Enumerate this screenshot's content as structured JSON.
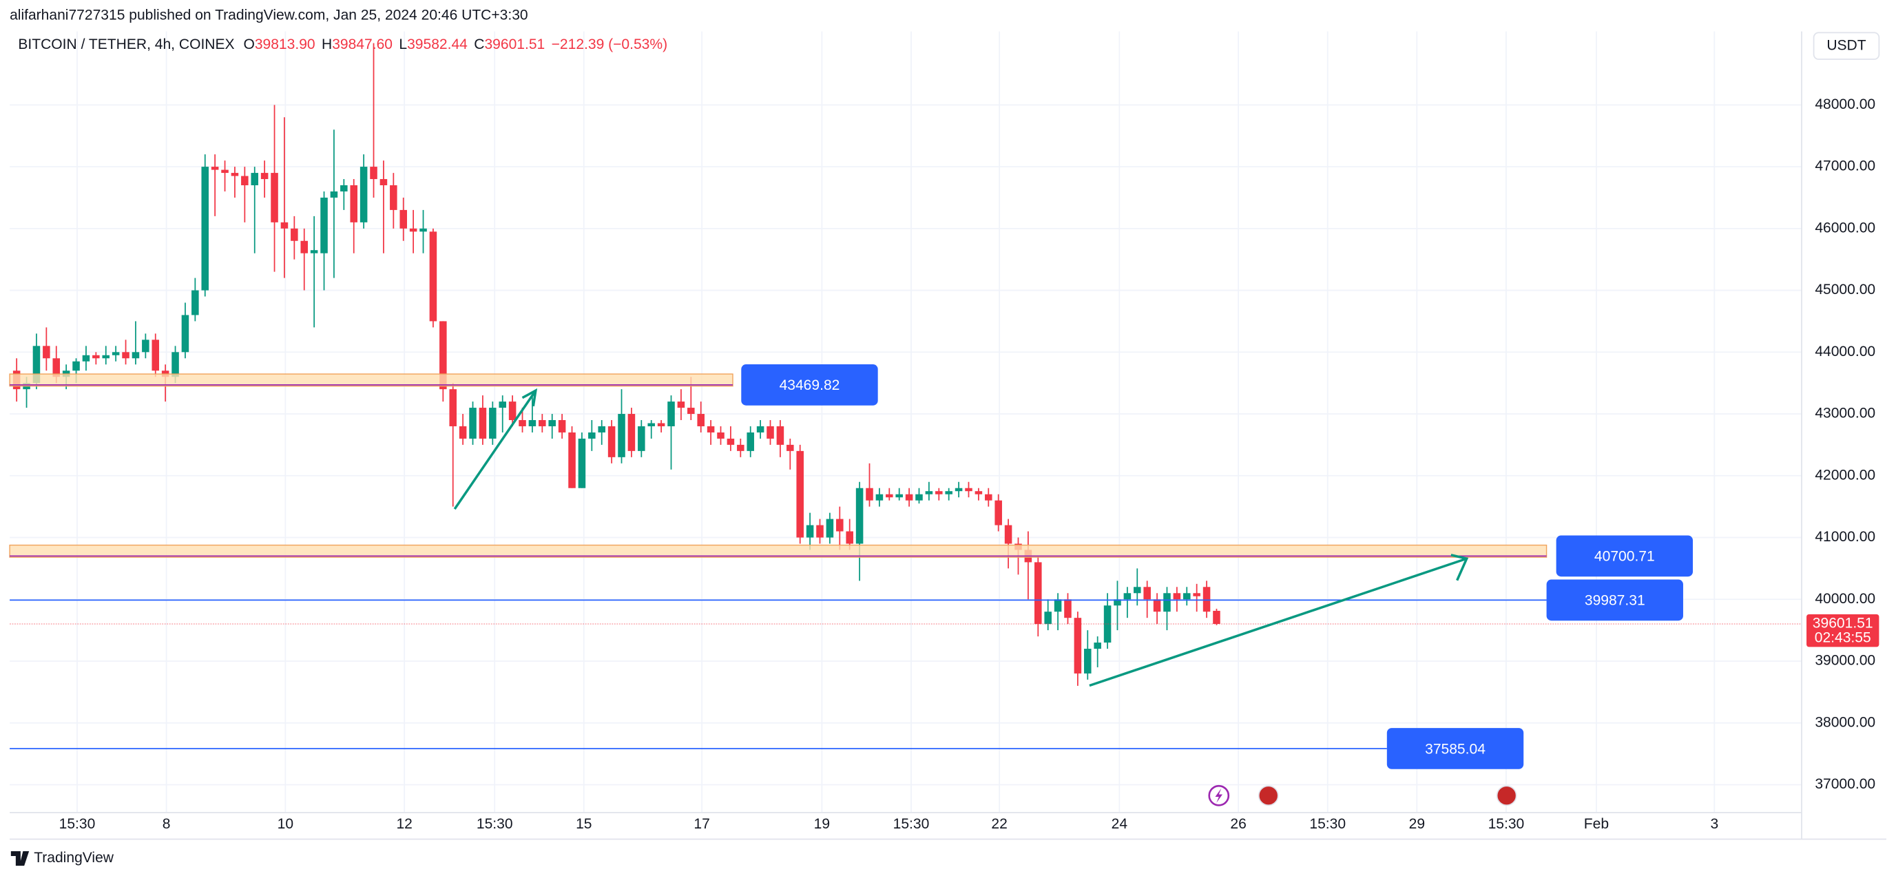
{
  "header": {
    "publisher": "alifarhani7727315 published on TradingView.com, Jan 25, 2024 20:46 UTC+3:30",
    "symbol": "BITCOIN / TETHER, 4h, COINEX",
    "ohlc": [
      {
        "key": "O",
        "value": "39813.90"
      },
      {
        "key": "H",
        "value": "39847.60"
      },
      {
        "key": "L",
        "value": "39582.44"
      },
      {
        "key": "C",
        "value": "39601.51"
      }
    ],
    "change": "−212.39 (−0.53%)",
    "currency": "USDT"
  },
  "chart_data": {
    "type": "candlestick",
    "up_color": "#089981",
    "down_color": "#f23645",
    "grid": true,
    "open": [
      43700,
      43400,
      43500,
      44100,
      43900,
      43600,
      43700,
      43850,
      43950,
      43900,
      43950,
      44000,
      43900,
      44000,
      44200,
      43700,
      43600,
      44000,
      44600,
      45000,
      47000,
      46950,
      46900,
      46850,
      46700,
      46900,
      46900,
      46100,
      46000,
      45800,
      45600,
      45600,
      46500,
      46600,
      46700,
      46100,
      47000,
      46800,
      46700,
      46300,
      46000,
      45950,
      45950,
      44500,
      43400,
      42800,
      42600,
      43100,
      42600,
      43100,
      43200,
      42900,
      42800,
      42900,
      42800,
      42900,
      42700,
      41800,
      42600,
      42700,
      42800,
      42300,
      43000,
      42400,
      42800,
      42850,
      42800,
      43200,
      43100,
      43000,
      42800,
      42700,
      42600,
      42500,
      42400,
      42700,
      42800,
      42800,
      42500,
      42400,
      41000,
      41200,
      41000,
      41300,
      41100,
      40900,
      41800,
      41600,
      41700,
      41650,
      41700,
      41600,
      41700,
      41750,
      41700,
      41750,
      41800,
      41750,
      41700,
      41600,
      41200,
      40900,
      40800,
      40600,
      39600,
      39800,
      40000,
      39700,
      38800,
      39200,
      39300,
      39900,
      40000,
      40100,
      40200,
      40000,
      39800,
      40100,
      40000,
      40100,
      40200,
      39813.9
    ],
    "high": [
      43900,
      43600,
      44300,
      44400,
      44100,
      43800,
      43900,
      44100,
      44000,
      44100,
      44100,
      44200,
      44500,
      44300,
      44300,
      43800,
      44100,
      44800,
      45200,
      47200,
      47200,
      47100,
      47000,
      47000,
      47000,
      47100,
      48000,
      47800,
      46200,
      46000,
      46200,
      46600,
      47600,
      46800,
      46800,
      47200,
      49000,
      47100,
      46900,
      46500,
      46300,
      46300,
      46000,
      44500,
      43500,
      43000,
      43200,
      43300,
      43200,
      43300,
      43300,
      43100,
      43300,
      43000,
      43000,
      43000,
      42800,
      42700,
      42900,
      42900,
      42900,
      43400,
      43100,
      42900,
      42900,
      42900,
      43300,
      43400,
      43600,
      43200,
      42900,
      42800,
      42800,
      42600,
      42800,
      42900,
      42900,
      42900,
      42600,
      42500,
      41400,
      41300,
      41400,
      41500,
      41300,
      41900,
      42200,
      41800,
      41800,
      41800,
      41800,
      41800,
      41900,
      41800,
      41800,
      41900,
      41900,
      41800,
      41800,
      41700,
      41300,
      41000,
      41100,
      40700,
      40000,
      40100,
      40100,
      39800,
      39500,
      39400,
      40100,
      40300,
      40200,
      40500,
      40300,
      40100,
      40200,
      40200,
      40200,
      40250,
      40300,
      39847.6
    ],
    "low": [
      43200,
      43100,
      43400,
      43700,
      43500,
      43400,
      43500,
      43700,
      43800,
      43800,
      43850,
      43800,
      43800,
      43900,
      43600,
      43200,
      43500,
      43900,
      44500,
      44900,
      46200,
      46600,
      46500,
      46100,
      45600,
      46500,
      45300,
      45200,
      45500,
      45000,
      44400,
      45000,
      45200,
      46300,
      45600,
      46000,
      46500,
      45600,
      46000,
      45800,
      45600,
      45600,
      44400,
      43200,
      41500,
      42500,
      42500,
      42500,
      42500,
      42700,
      42800,
      42700,
      42700,
      42700,
      42600,
      42600,
      41800,
      41800,
      42400,
      42500,
      42200,
      42200,
      42300,
      42300,
      42600,
      42700,
      42100,
      42900,
      42900,
      42700,
      42500,
      42500,
      42400,
      42300,
      42300,
      42600,
      42500,
      42300,
      42100,
      40900,
      40800,
      40900,
      40900,
      40800,
      40800,
      40300,
      41500,
      41500,
      41600,
      41600,
      41500,
      41550,
      41600,
      41600,
      41600,
      41650,
      41650,
      41600,
      41500,
      41100,
      40500,
      40400,
      40000,
      39400,
      39500,
      39500,
      39600,
      38600,
      38700,
      38900,
      39200,
      39500,
      39700,
      39900,
      39700,
      39600,
      39500,
      39800,
      39900,
      39800,
      39700,
      39582.44
    ],
    "close": [
      43400,
      43500,
      44100,
      43900,
      43600,
      43700,
      43850,
      43950,
      43900,
      43950,
      44000,
      43900,
      44000,
      44200,
      43700,
      43600,
      44000,
      44600,
      45000,
      47000,
      46950,
      46900,
      46850,
      46700,
      46900,
      46800,
      46100,
      46000,
      45800,
      45600,
      45650,
      46500,
      46600,
      46700,
      46100,
      47000,
      46800,
      46700,
      46300,
      46000,
      45950,
      46000,
      44500,
      43400,
      42800,
      42600,
      43100,
      42600,
      43100,
      43200,
      42900,
      42800,
      42900,
      42800,
      42900,
      42700,
      41800,
      42600,
      42700,
      42800,
      42300,
      43000,
      42400,
      42800,
      42850,
      42800,
      43200,
      43100,
      43000,
      42800,
      42700,
      42600,
      42500,
      42400,
      42700,
      42800,
      42600,
      42500,
      42400,
      41000,
      41200,
      41000,
      41300,
      41100,
      40900,
      41800,
      41600,
      41700,
      41650,
      41700,
      41600,
      41700,
      41750,
      41700,
      41750,
      41800,
      41750,
      41700,
      41600,
      41200,
      40900,
      40800,
      40600,
      39600,
      39800,
      40000,
      39700,
      38800,
      39200,
      39300,
      39900,
      40000,
      40100,
      40200,
      40000,
      39800,
      40100,
      40000,
      40100,
      40050,
      39800,
      39601.51
    ],
    "xlim": [
      -0.7,
      180
    ],
    "xticks": [
      {
        "value": 6.1,
        "label": "15:30"
      },
      {
        "value": 15.1,
        "label": "8"
      },
      {
        "value": 27.1,
        "label": "10"
      },
      {
        "value": 39.1,
        "label": "12"
      },
      {
        "value": 48.2,
        "label": "15:30"
      },
      {
        "value": 57.2,
        "label": "15"
      },
      {
        "value": 69.1,
        "label": "17"
      },
      {
        "value": 81.2,
        "label": "19"
      },
      {
        "value": 90.2,
        "label": "15:30"
      },
      {
        "value": 99.1,
        "label": "22"
      },
      {
        "value": 111.2,
        "label": "24"
      },
      {
        "value": 123.2,
        "label": "26"
      },
      {
        "value": 132.2,
        "label": "15:30"
      },
      {
        "value": 141.2,
        "label": "29"
      },
      {
        "value": 150.2,
        "label": "15:30"
      },
      {
        "value": 159.3,
        "label": "Feb"
      },
      {
        "value": 171.2,
        "label": "3"
      }
    ],
    "ylim": [
      36550,
      49150
    ],
    "yticks": [
      {
        "value": 37000,
        "label": "37000.00"
      },
      {
        "value": 38000,
        "label": "38000.00"
      },
      {
        "value": 39000,
        "label": "39000.00"
      },
      {
        "value": 40000,
        "label": "40000.00"
      },
      {
        "value": 41000,
        "label": "41000.00"
      },
      {
        "value": 42000,
        "label": "42000.00"
      },
      {
        "value": 43000,
        "label": "43000.00"
      },
      {
        "value": 44000,
        "label": "44000.00"
      },
      {
        "value": 45000,
        "label": "45000.00"
      },
      {
        "value": 46000,
        "label": "46000.00"
      },
      {
        "value": 47000,
        "label": "47000.00"
      },
      {
        "value": 48000,
        "label": "48000.00"
      }
    ],
    "levels": [
      {
        "value": 43469.82,
        "kind": "zone"
      },
      {
        "value": 40700.71,
        "kind": "zone"
      },
      {
        "value": 39987.31,
        "kind": "line"
      },
      {
        "value": 37585.04,
        "kind": "line"
      }
    ],
    "last_price": {
      "value": 39601.51,
      "countdown": "02:43:55"
    }
  },
  "footer": {
    "brand": "TradingView"
  }
}
